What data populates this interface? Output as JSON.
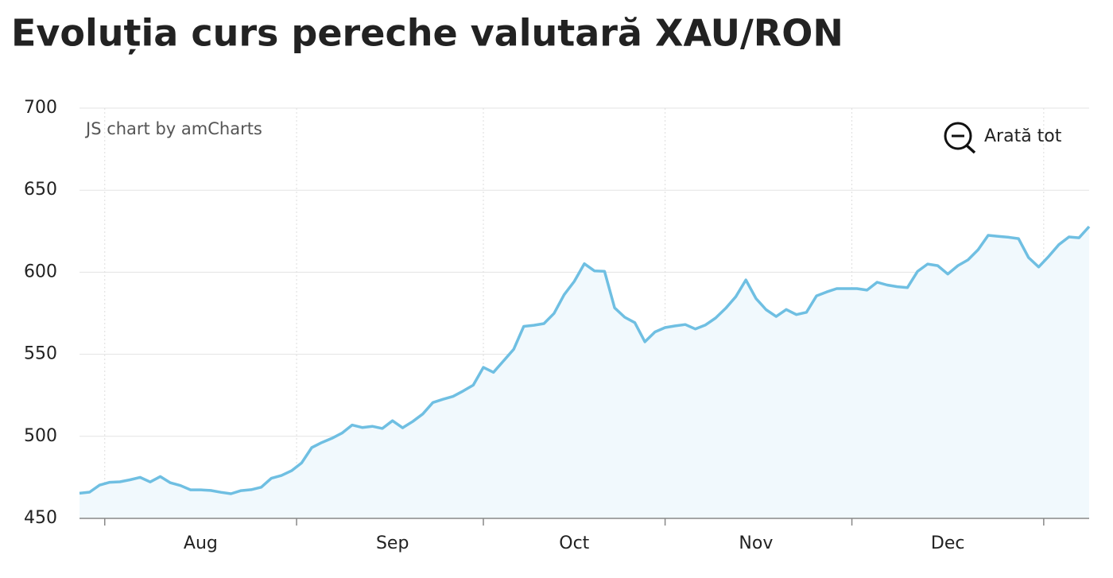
{
  "chart_data": {
    "type": "line",
    "title": "Evoluția curs pereche valutară XAU/RON",
    "credit": "JS chart by amCharts",
    "zoom_button": "Arată tot",
    "categories": [
      null,
      null,
      null,
      null,
      null,
      null,
      null,
      null,
      null,
      null,
      null,
      null,
      "Aug",
      null,
      null,
      null,
      null,
      null,
      null,
      null,
      null,
      null,
      null,
      null,
      null,
      null,
      null,
      null,
      null,
      null,
      null,
      "Sep",
      null,
      null,
      null,
      null,
      null,
      null,
      null,
      null,
      null,
      null,
      null,
      null,
      null,
      null,
      null,
      null,
      null,
      "Oct",
      null,
      null,
      null,
      null,
      null,
      null,
      null,
      null,
      null,
      null,
      null,
      null,
      null,
      null,
      null,
      null,
      null,
      "Nov",
      null,
      null,
      null,
      null,
      null,
      null,
      null,
      null,
      null,
      null,
      null,
      null,
      null,
      null,
      null,
      null,
      null,
      null,
      "Dec",
      null,
      null,
      null,
      null,
      null,
      null,
      null,
      null,
      null,
      null,
      null,
      null,
      null,
      null
    ],
    "values": [
      465.3,
      466,
      470.3,
      472,
      472.3,
      473.5,
      475,
      472.2,
      475.5,
      471.7,
      470,
      467.4,
      467.4,
      467,
      465.9,
      465,
      466.9,
      467.5,
      469,
      474.4,
      476.1,
      479,
      483.8,
      493.1,
      496.2,
      498.8,
      502,
      506.9,
      505.4,
      506.1,
      504.8,
      509.5,
      505.2,
      509,
      513.6,
      520.6,
      522.6,
      524.3,
      527.6,
      531.2,
      542,
      539,
      546,
      553,
      567,
      567.7,
      568.7,
      574.9,
      586.3,
      594.4,
      605.2,
      600.8,
      600.6,
      578.3,
      572.6,
      569.3,
      557.6,
      563.6,
      566.3,
      567.3,
      568.1,
      565.4,
      567.9,
      572.1,
      578,
      585.1,
      595.3,
      584,
      577.2,
      573,
      577.3,
      574.2,
      575.6,
      585.6,
      588,
      590,
      590,
      590,
      589.1,
      593.9,
      592.2,
      591.2,
      590.6,
      600.5,
      605,
      604,
      598.9,
      604,
      607.5,
      613.7,
      622.5,
      621.9,
      621.3,
      620.5,
      608.9,
      603.2,
      609.7,
      616.8,
      621.5,
      621,
      627.8
    ],
    "color": "#6fbfe2",
    "fill": "#f1f9fd",
    "ylim": [
      450,
      700
    ],
    "yticks": [
      450,
      500,
      550,
      600,
      650,
      700
    ],
    "grid": true
  }
}
